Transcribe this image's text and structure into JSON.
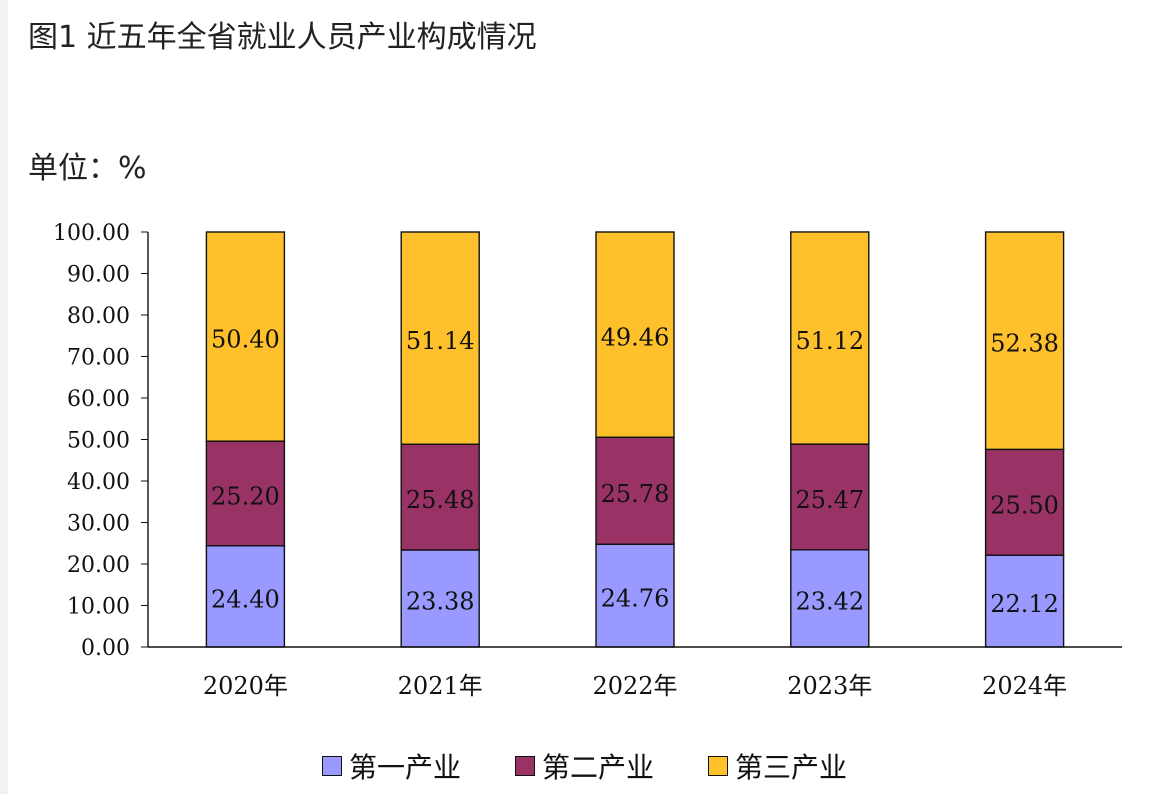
{
  "header": {
    "title": "图1 近五年全省就业人员产业构成情况",
    "unit": "单位：%"
  },
  "chart_data": {
    "type": "bar",
    "stacked": true,
    "categories": [
      "2020年",
      "2021年",
      "2022年",
      "2023年",
      "2024年"
    ],
    "y_ticks": [
      "0.00",
      "10.00",
      "20.00",
      "30.00",
      "40.00",
      "50.00",
      "60.00",
      "70.00",
      "80.00",
      "90.00",
      "100.00"
    ],
    "ylim": [
      0,
      100
    ],
    "value_labels": {
      "primary": [
        "24.40",
        "23.38",
        "24.76",
        "23.42",
        "22.12"
      ],
      "secondary": [
        "25.20",
        "25.48",
        "25.78",
        "25.47",
        "25.50"
      ],
      "tertiary": [
        "50.40",
        "51.14",
        "49.46",
        "51.12",
        "52.38"
      ]
    },
    "series": [
      {
        "key": "primary",
        "name": "第一产业",
        "color": "#9999ff",
        "values": [
          24.4,
          23.38,
          24.76,
          23.42,
          22.12
        ]
      },
      {
        "key": "secondary",
        "name": "第二产业",
        "color": "#993366",
        "values": [
          25.2,
          25.48,
          25.78,
          25.47,
          25.5
        ]
      },
      {
        "key": "tertiary",
        "name": "第三产业",
        "color": "#ffc12b",
        "values": [
          50.4,
          51.14,
          49.46,
          51.12,
          52.38
        ]
      }
    ],
    "legend_position": "bottom",
    "grid": false
  }
}
